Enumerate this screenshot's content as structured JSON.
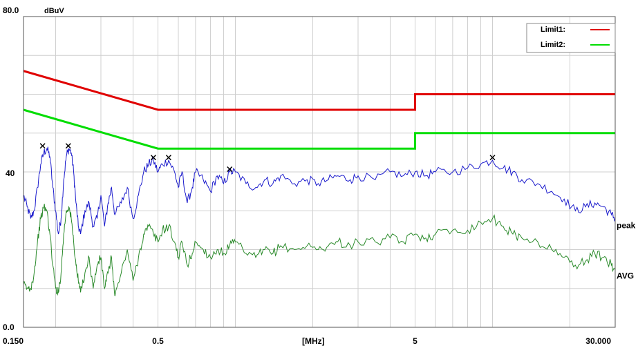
{
  "chart_data": {
    "type": "line",
    "title": "",
    "xlabel": "[MHz]",
    "ylabel": "dBuV",
    "x_scale": "log",
    "xlim": [
      0.15,
      30
    ],
    "ylim": [
      0,
      80
    ],
    "grid": true,
    "legend_position": "top-right",
    "x_ticks": [
      {
        "value": 0.15,
        "label": "0.150"
      },
      {
        "value": 0.5,
        "label": "0.5"
      },
      {
        "value": 5,
        "label": "5"
      },
      {
        "value": 30,
        "label": "30.000"
      }
    ],
    "y_ticks": [
      {
        "value": 80,
        "label": "80.0"
      },
      {
        "value": 40,
        "label": "40"
      },
      {
        "value": 0,
        "label": "0.0"
      }
    ],
    "limits": [
      {
        "name": "Limit1:",
        "color": "#e00000",
        "points": [
          [
            0.15,
            66
          ],
          [
            0.5,
            56
          ],
          [
            5,
            56
          ],
          [
            5,
            60
          ],
          [
            30,
            60
          ]
        ]
      },
      {
        "name": "Limit2:",
        "color": "#00dd00",
        "points": [
          [
            0.15,
            56
          ],
          [
            0.5,
            46
          ],
          [
            5,
            46
          ],
          [
            5,
            50
          ],
          [
            30,
            50
          ]
        ]
      }
    ],
    "series": [
      {
        "name": "peak",
        "color": "#1a1acc",
        "points": [
          [
            0.15,
            34
          ],
          [
            0.155,
            31
          ],
          [
            0.16,
            28
          ],
          [
            0.165,
            30
          ],
          [
            0.17,
            36
          ],
          [
            0.175,
            42
          ],
          [
            0.18,
            45
          ],
          [
            0.185,
            46
          ],
          [
            0.19,
            44
          ],
          [
            0.195,
            36
          ],
          [
            0.2,
            30
          ],
          [
            0.205,
            24
          ],
          [
            0.21,
            28
          ],
          [
            0.215,
            38
          ],
          [
            0.22,
            44
          ],
          [
            0.225,
            46
          ],
          [
            0.23,
            45
          ],
          [
            0.235,
            40
          ],
          [
            0.24,
            32
          ],
          [
            0.245,
            26
          ],
          [
            0.25,
            24
          ],
          [
            0.26,
            30
          ],
          [
            0.27,
            32
          ],
          [
            0.28,
            26
          ],
          [
            0.29,
            28
          ],
          [
            0.3,
            34
          ],
          [
            0.31,
            26
          ],
          [
            0.32,
            32
          ],
          [
            0.33,
            36
          ],
          [
            0.34,
            29
          ],
          [
            0.36,
            32
          ],
          [
            0.38,
            36
          ],
          [
            0.4,
            28
          ],
          [
            0.42,
            34
          ],
          [
            0.44,
            40
          ],
          [
            0.46,
            42
          ],
          [
            0.48,
            43
          ],
          [
            0.5,
            40
          ],
          [
            0.52,
            42
          ],
          [
            0.55,
            43
          ],
          [
            0.58,
            40
          ],
          [
            0.6,
            36
          ],
          [
            0.62,
            40
          ],
          [
            0.65,
            32
          ],
          [
            0.68,
            36
          ],
          [
            0.7,
            40
          ],
          [
            0.75,
            38
          ],
          [
            0.8,
            35
          ],
          [
            0.85,
            39
          ],
          [
            0.9,
            37
          ],
          [
            0.95,
            40
          ],
          [
            1.0,
            40
          ],
          [
            1.1,
            37
          ],
          [
            1.2,
            36
          ],
          [
            1.3,
            38
          ],
          [
            1.4,
            37
          ],
          [
            1.5,
            39
          ],
          [
            1.7,
            37
          ],
          [
            1.9,
            38
          ],
          [
            2.1,
            37
          ],
          [
            2.3,
            38
          ],
          [
            2.5,
            39
          ],
          [
            2.8,
            38
          ],
          [
            3.0,
            39
          ],
          [
            3.5,
            38
          ],
          [
            4.0,
            40
          ],
          [
            4.5,
            39
          ],
          [
            5.0,
            40
          ],
          [
            5.5,
            39
          ],
          [
            6.0,
            40
          ],
          [
            7.0,
            40
          ],
          [
            8.0,
            41
          ],
          [
            9.0,
            42
          ],
          [
            10.0,
            43
          ],
          [
            11.0,
            41
          ],
          [
            12.0,
            40
          ],
          [
            13.0,
            38
          ],
          [
            15.0,
            37
          ],
          [
            17.0,
            35
          ],
          [
            19.0,
            33
          ],
          [
            21.0,
            30
          ],
          [
            23.0,
            31
          ],
          [
            25.0,
            32
          ],
          [
            27.0,
            31
          ],
          [
            29.0,
            29
          ],
          [
            30.0,
            28
          ]
        ]
      },
      {
        "name": "AVG",
        "color": "#2a8a2a",
        "points": [
          [
            0.15,
            11
          ],
          [
            0.155,
            10
          ],
          [
            0.16,
            10
          ],
          [
            0.165,
            14
          ],
          [
            0.17,
            22
          ],
          [
            0.175,
            28
          ],
          [
            0.18,
            31
          ],
          [
            0.185,
            30
          ],
          [
            0.19,
            24
          ],
          [
            0.195,
            16
          ],
          [
            0.2,
            10
          ],
          [
            0.205,
            9
          ],
          [
            0.21,
            14
          ],
          [
            0.215,
            24
          ],
          [
            0.22,
            30
          ],
          [
            0.225,
            31
          ],
          [
            0.23,
            28
          ],
          [
            0.235,
            22
          ],
          [
            0.24,
            16
          ],
          [
            0.245,
            12
          ],
          [
            0.25,
            9
          ],
          [
            0.26,
            14
          ],
          [
            0.27,
            18
          ],
          [
            0.28,
            10
          ],
          [
            0.29,
            16
          ],
          [
            0.3,
            18
          ],
          [
            0.31,
            10
          ],
          [
            0.32,
            14
          ],
          [
            0.33,
            18
          ],
          [
            0.34,
            8
          ],
          [
            0.36,
            14
          ],
          [
            0.38,
            20
          ],
          [
            0.4,
            12
          ],
          [
            0.42,
            18
          ],
          [
            0.44,
            24
          ],
          [
            0.46,
            26
          ],
          [
            0.48,
            24
          ],
          [
            0.5,
            22
          ],
          [
            0.52,
            25
          ],
          [
            0.55,
            26
          ],
          [
            0.58,
            22
          ],
          [
            0.6,
            18
          ],
          [
            0.62,
            22
          ],
          [
            0.65,
            16
          ],
          [
            0.68,
            19
          ],
          [
            0.7,
            22
          ],
          [
            0.75,
            20
          ],
          [
            0.8,
            18
          ],
          [
            0.85,
            20
          ],
          [
            0.9,
            19
          ],
          [
            0.95,
            21
          ],
          [
            1.0,
            22
          ],
          [
            1.1,
            19
          ],
          [
            1.2,
            18
          ],
          [
            1.3,
            20
          ],
          [
            1.4,
            19
          ],
          [
            1.5,
            21
          ],
          [
            1.7,
            20
          ],
          [
            1.9,
            21
          ],
          [
            2.1,
            20
          ],
          [
            2.3,
            21
          ],
          [
            2.5,
            22
          ],
          [
            2.8,
            21
          ],
          [
            3.0,
            22
          ],
          [
            3.5,
            22
          ],
          [
            4.0,
            23
          ],
          [
            4.5,
            22
          ],
          [
            5.0,
            24
          ],
          [
            5.5,
            23
          ],
          [
            6.0,
            24
          ],
          [
            7.0,
            25
          ],
          [
            8.0,
            25
          ],
          [
            9.0,
            27
          ],
          [
            10.0,
            28
          ],
          [
            11.0,
            26
          ],
          [
            12.0,
            24
          ],
          [
            13.0,
            23
          ],
          [
            15.0,
            22
          ],
          [
            17.0,
            20
          ],
          [
            19.0,
            18
          ],
          [
            21.0,
            16
          ],
          [
            23.0,
            17
          ],
          [
            25.0,
            19
          ],
          [
            27.0,
            18
          ],
          [
            29.0,
            16
          ],
          [
            30.0,
            15
          ]
        ]
      }
    ],
    "markers": [
      [
        0.178,
        46
      ],
      [
        0.224,
        46
      ],
      [
        0.48,
        43
      ],
      [
        0.55,
        43
      ],
      [
        0.95,
        40
      ],
      [
        10.0,
        43
      ]
    ]
  }
}
